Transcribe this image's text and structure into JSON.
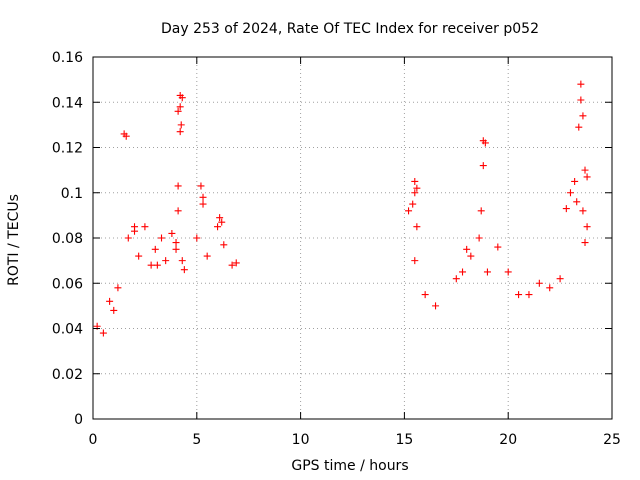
{
  "chart_data": {
    "type": "scatter",
    "title": "Day 253 of 2024, Rate Of TEC Index for receiver p052",
    "xlabel": "GPS time / hours",
    "ylabel": "ROTI / TECUs",
    "xlim": [
      0,
      25
    ],
    "ylim": [
      0,
      0.16
    ],
    "xticks": [
      0,
      5,
      10,
      15,
      20,
      25
    ],
    "xtick_labels": [
      "0",
      "5",
      "10",
      "15",
      "20",
      "25"
    ],
    "yticks": [
      0,
      0.02,
      0.04,
      0.06,
      0.08,
      0.1,
      0.12,
      0.14,
      0.16
    ],
    "ytick_labels": [
      "0",
      "0.02",
      "0.04",
      "0.06",
      "0.08",
      "0.1",
      "0.12",
      "0.14",
      "0.16"
    ],
    "grid": true,
    "marker": "+",
    "color": "#ff0000",
    "series": [
      {
        "name": "ROTI",
        "points": [
          [
            0.2,
            0.041
          ],
          [
            0.5,
            0.038
          ],
          [
            0.8,
            0.052
          ],
          [
            1.0,
            0.048
          ],
          [
            1.2,
            0.058
          ],
          [
            1.5,
            0.126
          ],
          [
            1.6,
            0.125
          ],
          [
            1.7,
            0.08
          ],
          [
            2.0,
            0.085
          ],
          [
            2.0,
            0.083
          ],
          [
            2.2,
            0.072
          ],
          [
            2.5,
            0.085
          ],
          [
            2.8,
            0.068
          ],
          [
            3.0,
            0.075
          ],
          [
            3.1,
            0.068
          ],
          [
            3.3,
            0.08
          ],
          [
            3.5,
            0.07
          ],
          [
            3.8,
            0.082
          ],
          [
            4.0,
            0.078
          ],
          [
            4.2,
            0.143
          ],
          [
            4.3,
            0.142
          ],
          [
            4.2,
            0.138
          ],
          [
            4.1,
            0.136
          ],
          [
            4.25,
            0.13
          ],
          [
            4.2,
            0.127
          ],
          [
            4.1,
            0.103
          ],
          [
            4.1,
            0.092
          ],
          [
            4.0,
            0.075
          ],
          [
            4.3,
            0.07
          ],
          [
            4.4,
            0.066
          ],
          [
            5.2,
            0.103
          ],
          [
            5.3,
            0.098
          ],
          [
            5.3,
            0.095
          ],
          [
            5.0,
            0.08
          ],
          [
            5.5,
            0.072
          ],
          [
            6.0,
            0.085
          ],
          [
            6.1,
            0.089
          ],
          [
            6.2,
            0.087
          ],
          [
            6.3,
            0.077
          ],
          [
            6.7,
            0.068
          ],
          [
            6.9,
            0.069
          ],
          [
            15.5,
            0.105
          ],
          [
            15.6,
            0.102
          ],
          [
            15.5,
            0.1
          ],
          [
            15.4,
            0.095
          ],
          [
            15.6,
            0.085
          ],
          [
            15.5,
            0.07
          ],
          [
            15.2,
            0.092
          ],
          [
            16.0,
            0.055
          ],
          [
            16.5,
            0.05
          ],
          [
            17.5,
            0.062
          ],
          [
            17.8,
            0.065
          ],
          [
            18.0,
            0.075
          ],
          [
            18.2,
            0.072
          ],
          [
            18.6,
            0.08
          ],
          [
            18.7,
            0.092
          ],
          [
            18.8,
            0.123
          ],
          [
            18.9,
            0.122
          ],
          [
            18.8,
            0.112
          ],
          [
            19.0,
            0.065
          ],
          [
            19.5,
            0.076
          ],
          [
            20.0,
            0.065
          ],
          [
            20.5,
            0.055
          ],
          [
            21.0,
            0.055
          ],
          [
            21.5,
            0.06
          ],
          [
            22.0,
            0.058
          ],
          [
            22.5,
            0.062
          ],
          [
            22.8,
            0.093
          ],
          [
            23.0,
            0.1
          ],
          [
            23.2,
            0.105
          ],
          [
            23.3,
            0.096
          ],
          [
            23.5,
            0.148
          ],
          [
            23.5,
            0.141
          ],
          [
            23.6,
            0.134
          ],
          [
            23.4,
            0.129
          ],
          [
            23.7,
            0.11
          ],
          [
            23.8,
            0.107
          ],
          [
            23.6,
            0.092
          ],
          [
            23.8,
            0.085
          ],
          [
            23.7,
            0.078
          ]
        ]
      }
    ]
  }
}
